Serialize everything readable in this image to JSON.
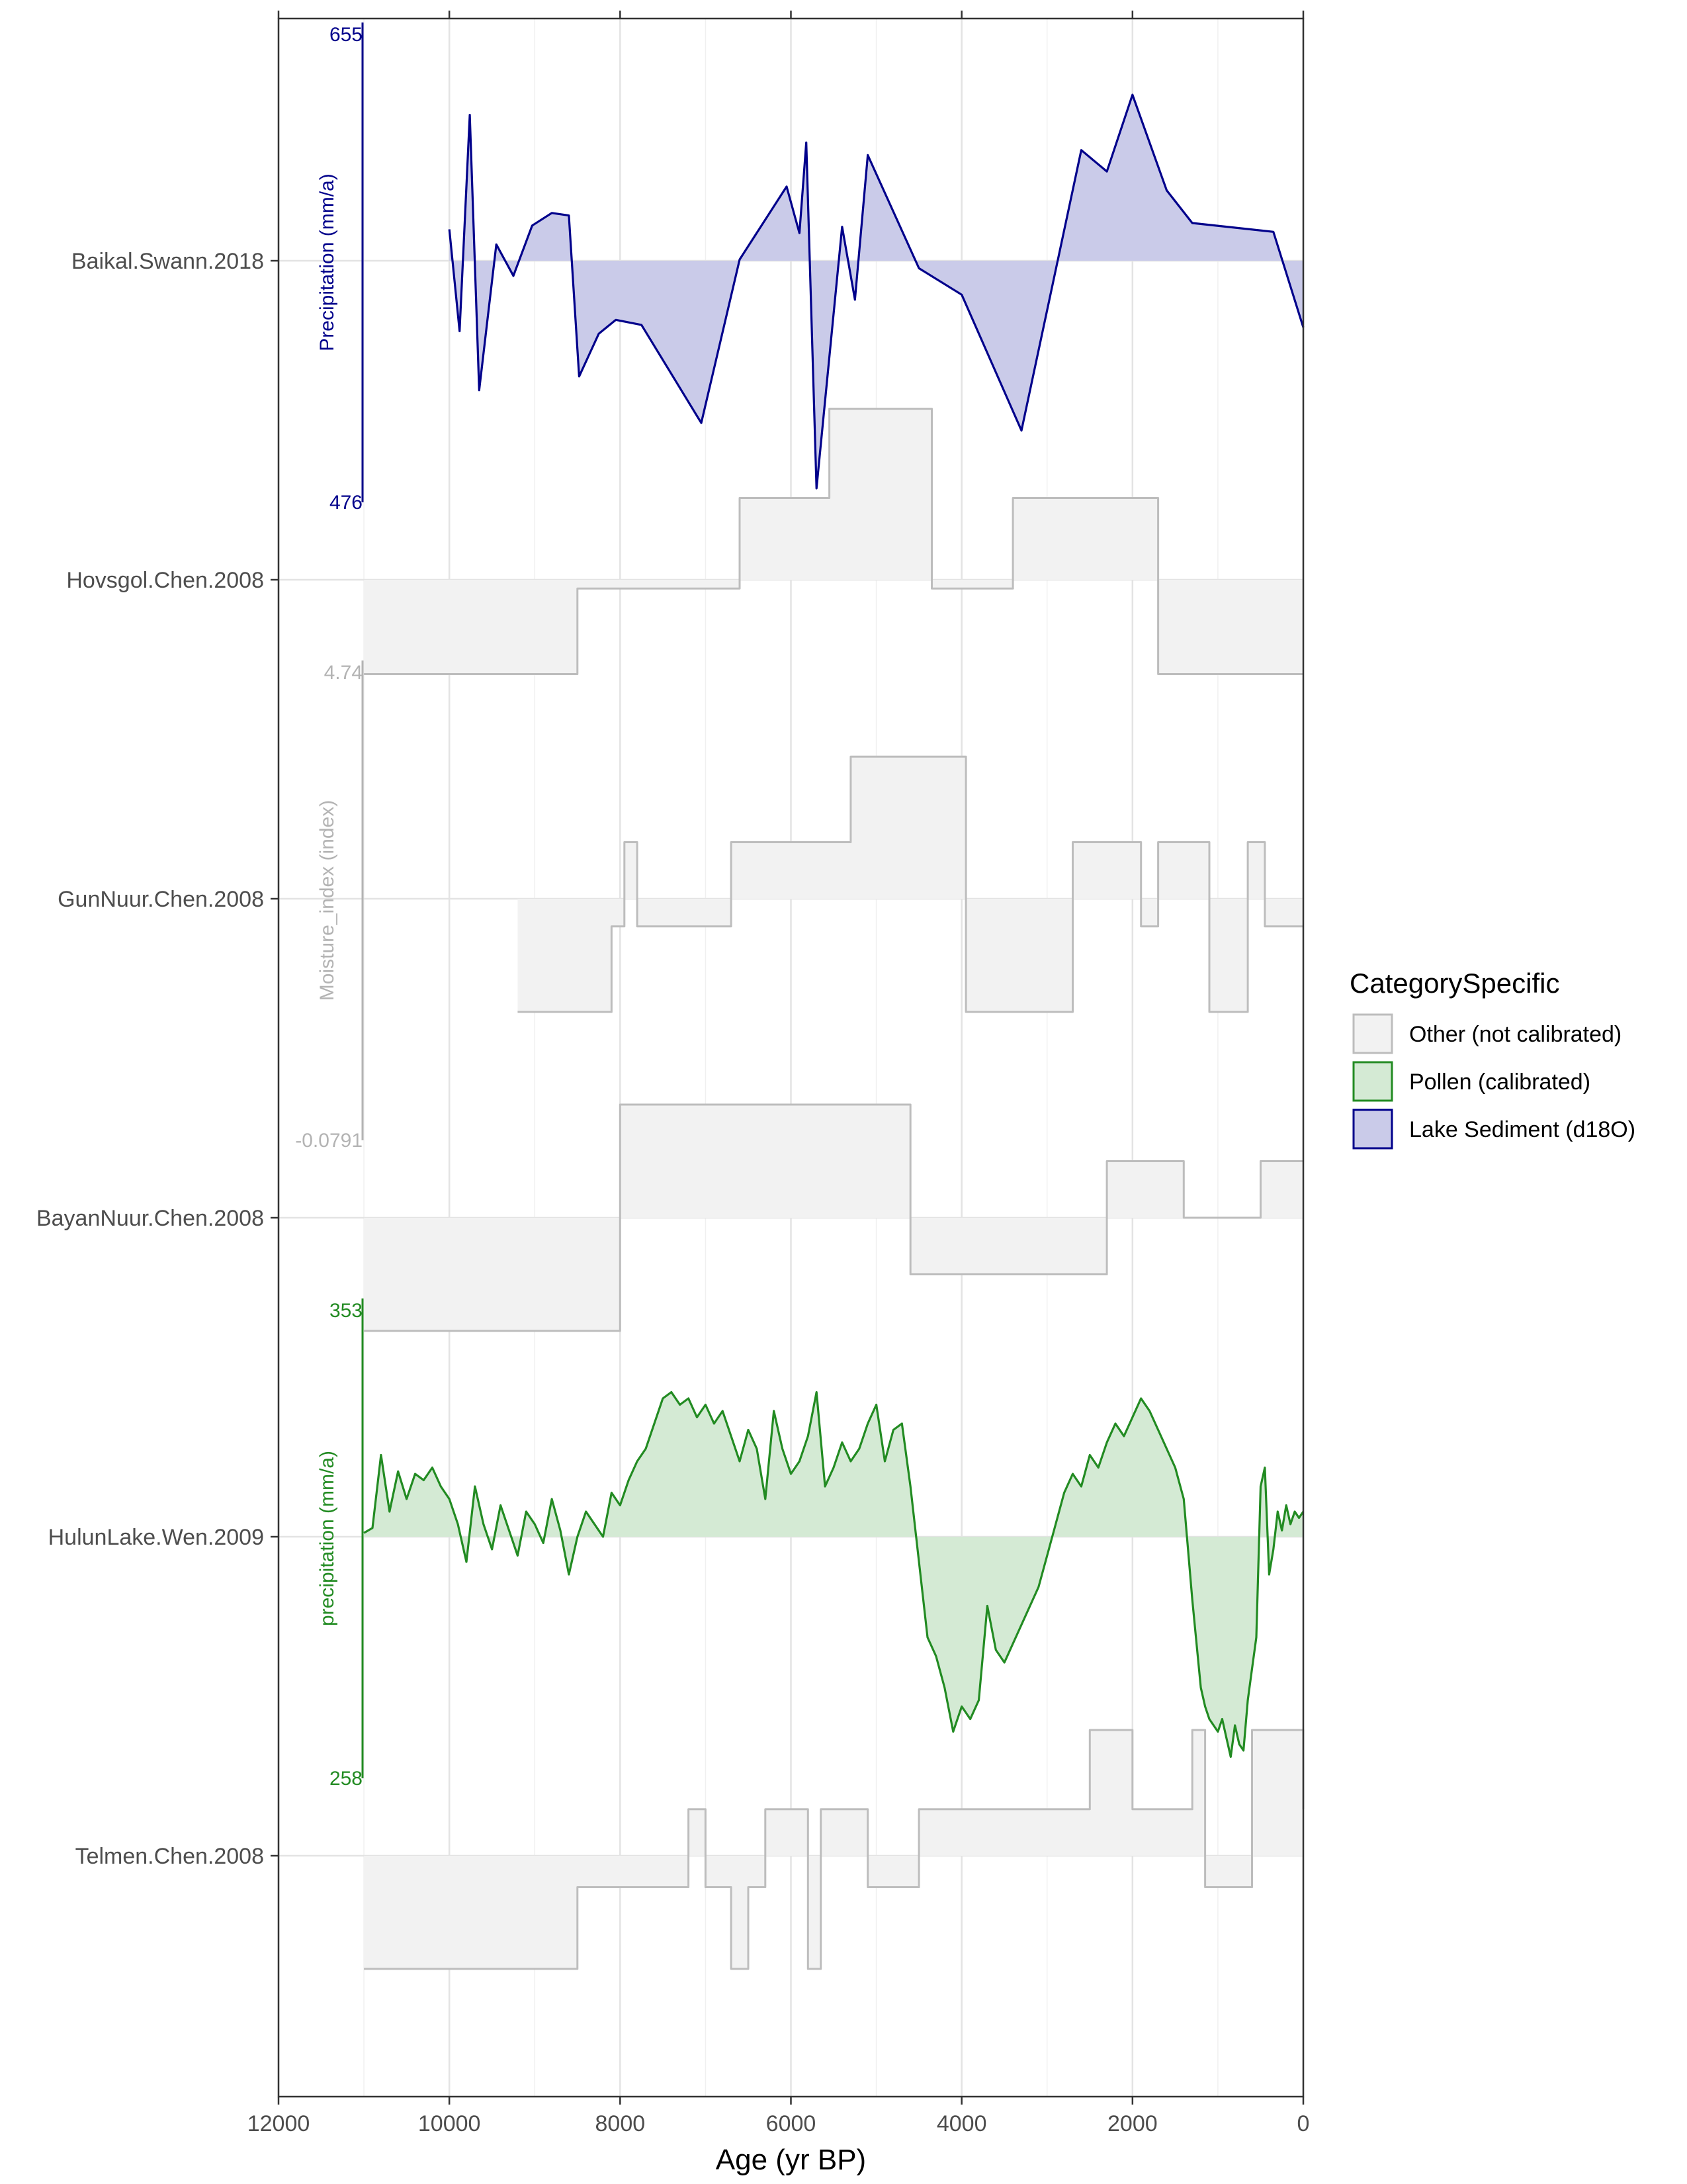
{
  "chart_data": {
    "type": "area",
    "xlabel": "Age (yr BP)",
    "x_reversed": true,
    "xlim": [
      0,
      12000
    ],
    "x_ticks": [
      12000,
      10000,
      8000,
      6000,
      4000,
      2000,
      0
    ],
    "x_tick_labels": [
      "12000",
      "10000",
      "8000",
      "6000",
      "4000",
      "2000",
      "0"
    ],
    "grid": true,
    "legend": {
      "title": "CategorySpecific",
      "position": "right",
      "entries": [
        {
          "label": "Other (not calibrated)",
          "fill": "#f2f2f2",
          "stroke": "#bdbdbd"
        },
        {
          "label": "Pollen (calibrated)",
          "fill": "#d4ead4",
          "stroke": "#228b22"
        },
        {
          "label": "Lake Sediment (d18O)",
          "fill": "#cacbe9",
          "stroke": "#00008b"
        }
      ]
    },
    "scales": [
      {
        "color": "#00008b",
        "label": "Precipitation (mm/a)",
        "top": "655",
        "bottom": "476"
      },
      {
        "color": "#b3b3b3",
        "label": "Moisture_index (index)",
        "top": "4.74",
        "bottom": "-0.0791"
      },
      {
        "color": "#228b22",
        "label": "precipitation (mm/a)",
        "top": "353",
        "bottom": "258"
      }
    ],
    "series": [
      {
        "name": "Baikal.Swann.2018",
        "category": "Lake Sediment (d18O)",
        "step": false,
        "stroke": "#00008b",
        "fill": "#cacbe9",
        "x": [
          10000,
          9880,
          9760,
          9650,
          9450,
          9250,
          9030,
          8800,
          8600,
          8480,
          8250,
          8050,
          7750,
          7050,
          6600,
          6050,
          5900,
          5820,
          5700,
          5400,
          5250,
          5100,
          4500,
          4000,
          3300,
          2600,
          2300,
          2000,
          1600,
          1300,
          350,
          0
        ],
        "y": [
          0.25,
          -0.56,
          1.16,
          -1.03,
          0.13,
          -0.12,
          0.28,
          0.38,
          0.36,
          -0.92,
          -0.58,
          -0.47,
          -0.51,
          -1.29,
          0.01,
          0.59,
          0.22,
          0.94,
          -1.81,
          0.27,
          -0.31,
          0.84,
          -0.06,
          -0.27,
          -1.35,
          0.88,
          0.71,
          1.32,
          0.56,
          0.3,
          0.23,
          -0.53
        ]
      },
      {
        "name": "Hovsgol.Chen.2008",
        "category": "Other (not calibrated)",
        "step": true,
        "stroke": "#bdbdbd",
        "fill": "#f2f2f2",
        "x": [
          11000,
          8500,
          6600,
          5550,
          4350,
          3400,
          1700,
          0
        ],
        "y": [
          -0.75,
          -0.07,
          0.65,
          1.36,
          -0.07,
          0.65,
          -0.75,
          -0.75
        ]
      },
      {
        "name": "GunNuur.Chen.2008",
        "category": "Other (not calibrated)",
        "step": true,
        "stroke": "#bdbdbd",
        "fill": "#f2f2f2",
        "x": [
          9200,
          8100,
          7950,
          7800,
          6700,
          5300,
          3950,
          2700,
          1900,
          1700,
          1100,
          650,
          450,
          0
        ],
        "y": [
          -0.9,
          -0.22,
          0.45,
          -0.22,
          0.45,
          1.13,
          -0.9,
          0.45,
          -0.22,
          0.45,
          -0.9,
          0.45,
          -0.22,
          -0.22
        ]
      },
      {
        "name": "BayanNuur.Chen.2008",
        "category": "Other (not calibrated)",
        "step": true,
        "stroke": "#bdbdbd",
        "fill": "#f2f2f2",
        "x": [
          11000,
          8000,
          4600,
          2300,
          1400,
          500,
          0
        ],
        "y": [
          -0.9,
          0.9,
          -0.45,
          0.45,
          0.0,
          0.45,
          0.45
        ]
      },
      {
        "name": "HulunLake.Wen.2009",
        "category": "Pollen (calibrated)",
        "step": false,
        "stroke": "#228b22",
        "fill": "#d4ead4",
        "x": [
          11000,
          10900,
          10800,
          10700,
          10600,
          10500,
          10400,
          10300,
          10200,
          10100,
          10000,
          9900,
          9800,
          9700,
          9600,
          9500,
          9400,
          9300,
          9200,
          9100,
          9000,
          8900,
          8800,
          8700,
          8600,
          8500,
          8400,
          8300,
          8200,
          8100,
          8000,
          7900,
          7800,
          7700,
          7600,
          7500,
          7400,
          7300,
          7200,
          7100,
          7000,
          6900,
          6800,
          6700,
          6600,
          6500,
          6400,
          6300,
          6200,
          6100,
          6000,
          5900,
          5800,
          5700,
          5600,
          5500,
          5400,
          5300,
          5200,
          5100,
          5000,
          4900,
          4800,
          4700,
          4600,
          4500,
          4400,
          4300,
          4200,
          4100,
          4000,
          3900,
          3800,
          3700,
          3600,
          3500,
          3400,
          3300,
          3200,
          3100,
          3000,
          2900,
          2800,
          2700,
          2600,
          2500,
          2400,
          2300,
          2200,
          2100,
          2000,
          1900,
          1800,
          1700,
          1600,
          1500,
          1400,
          1300,
          1200,
          1150,
          1100,
          1000,
          950,
          900,
          850,
          800,
          750,
          700,
          650,
          600,
          550,
          500,
          450,
          400,
          350,
          300,
          250,
          200,
          150,
          100,
          50,
          0
        ],
        "y": [
          0.03,
          0.07,
          0.65,
          0.2,
          0.52,
          0.3,
          0.5,
          0.45,
          0.55,
          0.4,
          0.3,
          0.1,
          -0.2,
          0.4,
          0.1,
          -0.1,
          0.25,
          0.05,
          -0.15,
          0.2,
          0.1,
          -0.05,
          0.3,
          0.05,
          -0.3,
          0.0,
          0.2,
          0.1,
          0.0,
          0.35,
          0.25,
          0.45,
          0.6,
          0.7,
          0.9,
          1.1,
          1.15,
          1.05,
          1.1,
          0.95,
          1.05,
          0.9,
          1.0,
          0.8,
          0.6,
          0.85,
          0.7,
          0.3,
          1.0,
          0.7,
          0.5,
          0.6,
          0.8,
          1.15,
          0.4,
          0.55,
          0.75,
          0.6,
          0.7,
          0.9,
          1.05,
          0.6,
          0.85,
          0.9,
          0.4,
          -0.2,
          -0.8,
          -0.95,
          -1.2,
          -1.55,
          -1.35,
          -1.45,
          -1.3,
          -0.55,
          -0.9,
          -1.0,
          -0.85,
          -0.7,
          -0.55,
          -0.4,
          -0.15,
          0.1,
          0.35,
          0.5,
          0.4,
          0.65,
          0.55,
          0.75,
          0.9,
          0.8,
          0.95,
          1.1,
          1.0,
          0.85,
          0.7,
          0.55,
          0.3,
          -0.5,
          -1.2,
          -1.35,
          -1.45,
          -1.55,
          -1.45,
          -1.6,
          -1.75,
          -1.5,
          -1.65,
          -1.7,
          -1.3,
          -1.05,
          -0.8,
          0.4,
          0.55,
          -0.3,
          -0.1,
          0.2,
          0.05,
          0.25,
          0.1,
          0.2,
          0.15,
          0.2
        ]
      },
      {
        "name": "Telmen.Chen.2008",
        "category": "Other (not calibrated)",
        "step": true,
        "stroke": "#bdbdbd",
        "fill": "#f2f2f2",
        "x": [
          11000,
          8500,
          7200,
          7000,
          6700,
          6500,
          6300,
          5950,
          5800,
          5650,
          5100,
          4500,
          4300,
          4000,
          2500,
          2000,
          1300,
          1150,
          600,
          0
        ],
        "y": [
          -0.9,
          -0.25,
          0.37,
          -0.25,
          -0.9,
          -0.25,
          0.37,
          0.37,
          -0.9,
          0.37,
          -0.25,
          0.37,
          0.37,
          0.37,
          1.0,
          0.37,
          1.0,
          -0.25,
          1.0,
          0.37
        ]
      }
    ]
  }
}
